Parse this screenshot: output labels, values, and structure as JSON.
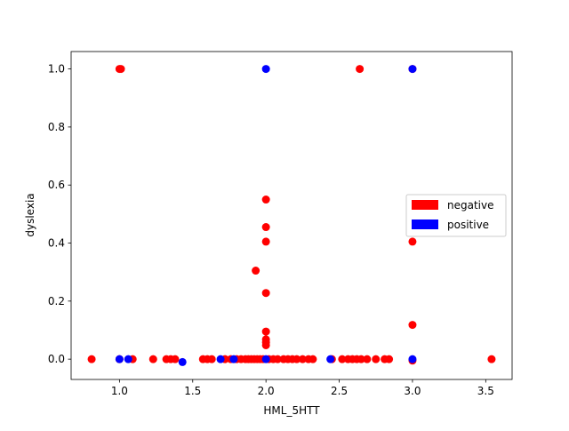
{
  "chart_data": {
    "type": "scatter",
    "title": "",
    "xlabel": "HML_5HTT",
    "ylabel": "dyslexia",
    "xlim": [
      0.67,
      3.68
    ],
    "ylim": [
      -0.07,
      1.06
    ],
    "grid": false,
    "legend_position": "center-right",
    "x_ticks": [
      {
        "value": 1.0,
        "label": "1.0"
      },
      {
        "value": 1.5,
        "label": "1.5"
      },
      {
        "value": 2.0,
        "label": "2.0"
      },
      {
        "value": 2.5,
        "label": "2.5"
      },
      {
        "value": 3.0,
        "label": "3.0"
      },
      {
        "value": 3.5,
        "label": "3.5"
      }
    ],
    "y_ticks": [
      {
        "value": 0.0,
        "label": "0.0"
      },
      {
        "value": 0.2,
        "label": "0.2"
      },
      {
        "value": 0.4,
        "label": "0.4"
      },
      {
        "value": 0.6,
        "label": "0.6"
      },
      {
        "value": 0.8,
        "label": "0.8"
      },
      {
        "value": 1.0,
        "label": "1.0"
      }
    ],
    "series": [
      {
        "name": "negative",
        "color": "#ff0000",
        "points": [
          [
            0.81,
            0.0
          ],
          [
            1.0,
            1.0
          ],
          [
            1.01,
            1.0
          ],
          [
            1.0,
            0.0
          ],
          [
            1.09,
            0.0
          ],
          [
            1.23,
            0.0
          ],
          [
            1.32,
            0.0
          ],
          [
            1.35,
            0.0
          ],
          [
            1.38,
            0.0
          ],
          [
            1.57,
            0.0
          ],
          [
            1.6,
            0.0
          ],
          [
            1.63,
            0.0
          ],
          [
            1.72,
            0.0
          ],
          [
            1.76,
            0.0
          ],
          [
            1.8,
            0.0
          ],
          [
            1.83,
            0.0
          ],
          [
            1.86,
            0.0
          ],
          [
            1.88,
            0.0
          ],
          [
            1.9,
            0.0
          ],
          [
            1.92,
            0.0
          ],
          [
            1.94,
            0.0
          ],
          [
            1.96,
            0.0
          ],
          [
            1.98,
            0.0
          ],
          [
            2.02,
            0.0
          ],
          [
            2.05,
            0.0
          ],
          [
            2.08,
            0.0
          ],
          [
            2.12,
            0.0
          ],
          [
            2.15,
            0.0
          ],
          [
            2.18,
            0.0
          ],
          [
            2.21,
            0.0
          ],
          [
            2.25,
            0.0
          ],
          [
            2.29,
            0.0
          ],
          [
            2.32,
            0.0
          ],
          [
            2.45,
            0.0
          ],
          [
            2.52,
            0.0
          ],
          [
            2.56,
            0.0
          ],
          [
            2.59,
            0.0
          ],
          [
            2.62,
            0.0
          ],
          [
            2.65,
            0.0
          ],
          [
            2.69,
            0.0
          ],
          [
            2.75,
            0.0
          ],
          [
            2.81,
            0.0
          ],
          [
            2.84,
            0.0
          ],
          [
            3.0,
            -0.005
          ],
          [
            3.54,
            0.0
          ],
          [
            1.93,
            0.305
          ],
          [
            2.0,
            0.55
          ],
          [
            2.0,
            0.455
          ],
          [
            2.0,
            0.405
          ],
          [
            2.0,
            0.228
          ],
          [
            2.0,
            0.095
          ],
          [
            2.0,
            0.068
          ],
          [
            2.0,
            0.058
          ],
          [
            2.0,
            0.048
          ],
          [
            2.64,
            1.0
          ],
          [
            3.0,
            1.0
          ],
          [
            3.0,
            0.405
          ],
          [
            3.0,
            0.118
          ]
        ]
      },
      {
        "name": "positive",
        "color": "#0000ff",
        "points": [
          [
            1.0,
            0.0
          ],
          [
            1.06,
            0.0
          ],
          [
            1.43,
            -0.01
          ],
          [
            1.69,
            0.0
          ],
          [
            1.78,
            0.0
          ],
          [
            2.0,
            0.0
          ],
          [
            2.0,
            1.0
          ],
          [
            2.44,
            0.0
          ],
          [
            3.0,
            1.0
          ],
          [
            3.0,
            0.0
          ]
        ]
      }
    ]
  }
}
